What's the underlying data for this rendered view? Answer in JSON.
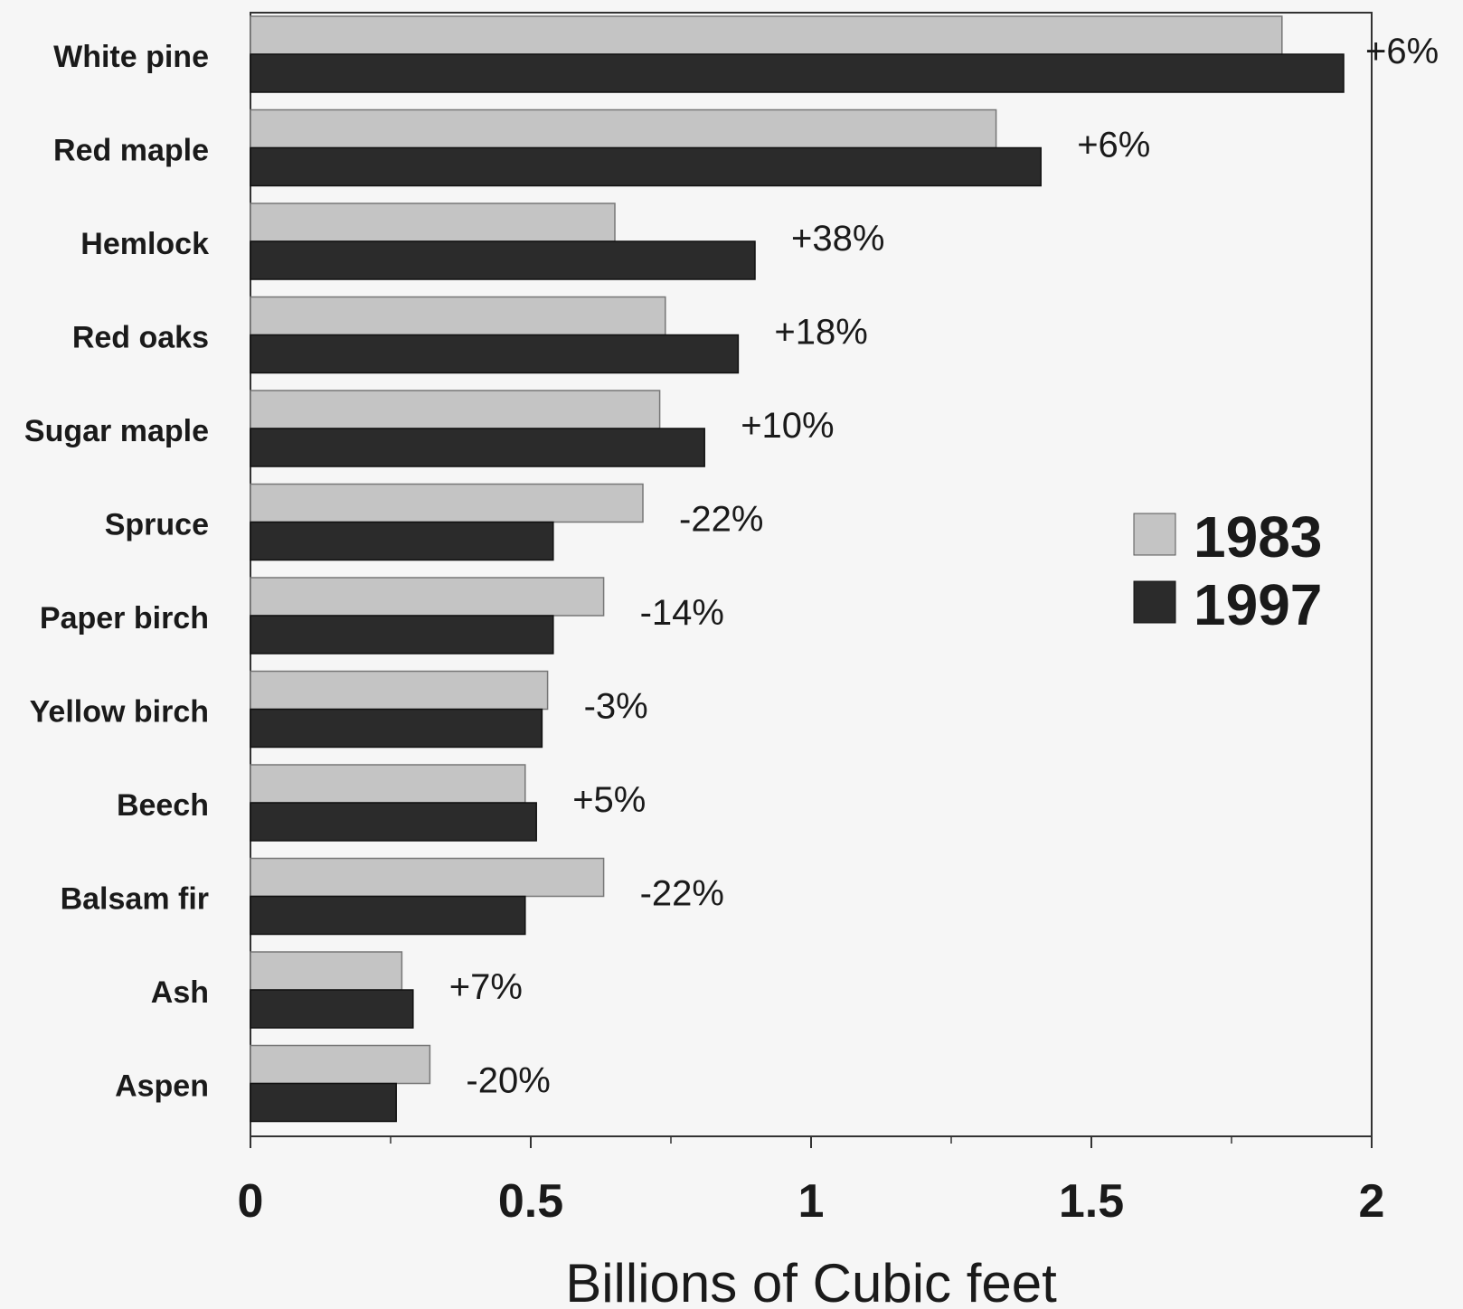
{
  "chart_data": {
    "type": "bar",
    "orientation": "horizontal",
    "categories": [
      "White pine",
      "Red maple",
      "Hemlock",
      "Red oaks",
      "Sugar maple",
      "Spruce",
      "Paper birch",
      "Yellow birch",
      "Beech",
      "Balsam fir",
      "Ash",
      "Aspen"
    ],
    "series": [
      {
        "name": "1983",
        "color": "#c4c4c4",
        "values": [
          1.84,
          1.33,
          0.65,
          0.74,
          0.73,
          0.7,
          0.63,
          0.53,
          0.49,
          0.63,
          0.27,
          0.32
        ]
      },
      {
        "name": "1997",
        "color": "#2b2b2b",
        "values": [
          1.95,
          1.41,
          0.9,
          0.87,
          0.81,
          0.54,
          0.54,
          0.52,
          0.51,
          0.49,
          0.29,
          0.26
        ]
      }
    ],
    "annotations": [
      "+6%",
      "+6%",
      "+38%",
      "+18%",
      "+10%",
      "-22%",
      "-14%",
      "-3%",
      "+5%",
      "-22%",
      "+7%",
      "-20%"
    ],
    "xlabel": "Billions of Cubic feet",
    "xlim": [
      0,
      2
    ],
    "x_ticks": [
      "0",
      "0.5",
      "1",
      "1.5",
      "2"
    ],
    "x_tick_values": [
      0,
      0.5,
      1,
      1.5,
      2
    ],
    "legend_position": "right",
    "grid": false
  }
}
